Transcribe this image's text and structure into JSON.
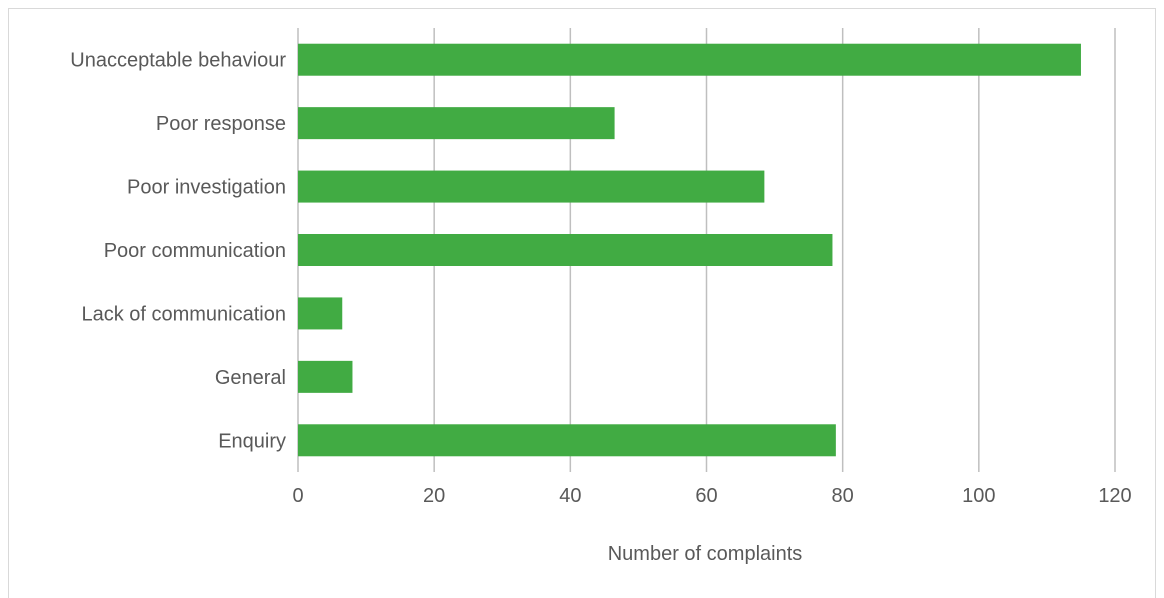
{
  "chart_data": {
    "type": "bar",
    "orientation": "horizontal",
    "categories": [
      "Unacceptable behaviour",
      "Poor response",
      "Poor investigation",
      "Poor communication",
      "Lack of communication",
      "General",
      "Enquiry"
    ],
    "values": [
      115,
      46.5,
      68.5,
      78.5,
      6.5,
      8,
      79
    ],
    "title": "",
    "xlabel": "Number of complaints",
    "ylabel": "",
    "xlim": [
      0,
      120
    ],
    "xticks": [
      "0",
      "20",
      "40",
      "60",
      "80",
      "100",
      "120"
    ],
    "grid": true,
    "legend": "none",
    "bar_color": "#41ab43",
    "grid_color": "#bfbfbf",
    "text_color": "#595959"
  }
}
